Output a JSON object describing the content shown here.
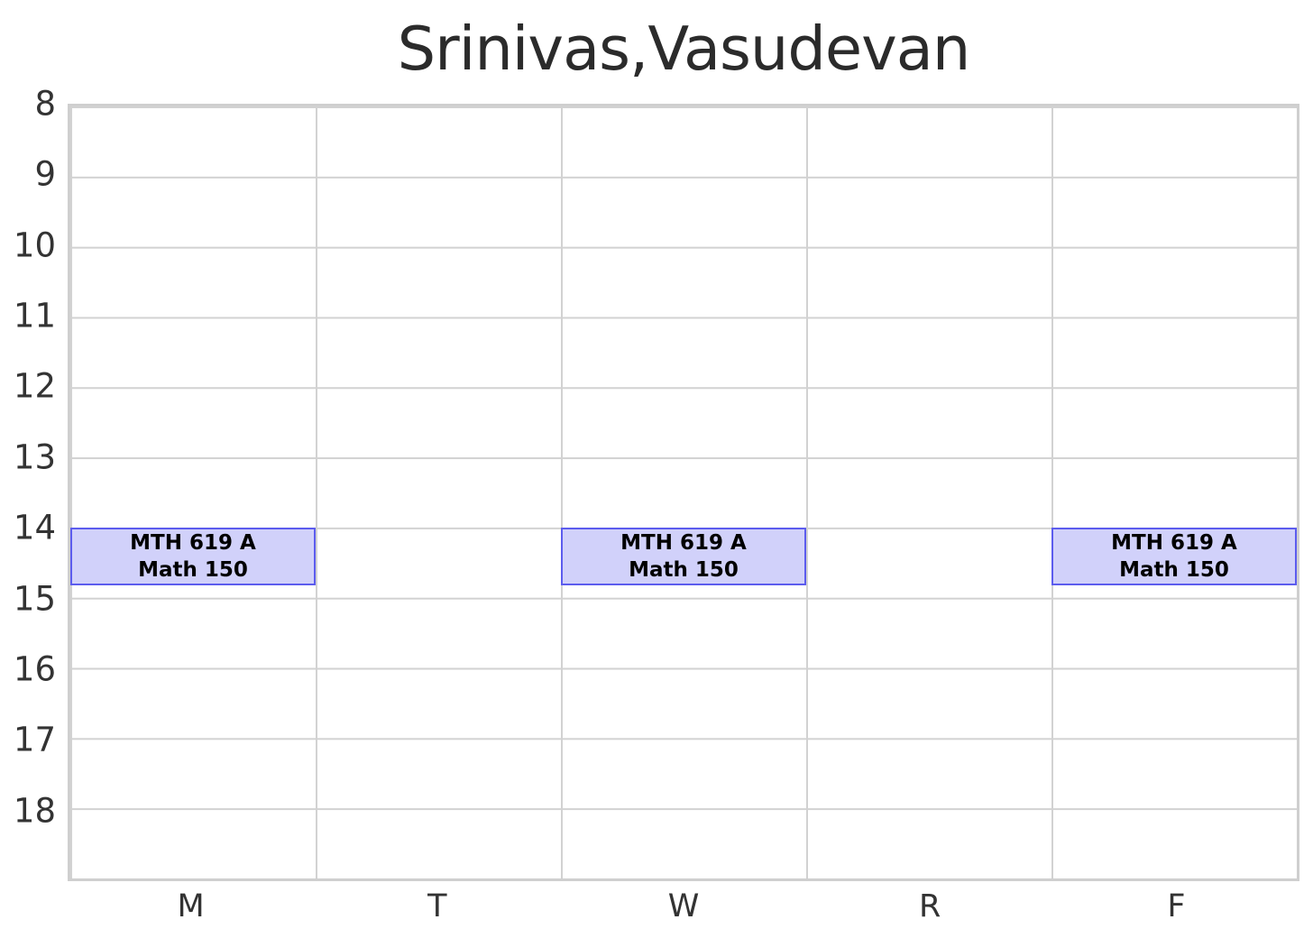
{
  "title": "Srinivas,Vasudevan",
  "colors": {
    "background": "#ffffff",
    "grid": "#d2d2d2",
    "spine": "#cfcfcf",
    "event_fill": "#d1d1fa",
    "event_border": "#5c5cee",
    "title_text": "#2b2b2b",
    "tick_text": "#333333",
    "event_text": "#000000"
  },
  "chart_data": {
    "type": "heatmap",
    "subtype": "weekly-schedule-grid",
    "title": "Srinivas,Vasudevan",
    "xlabel": "",
    "ylabel": "",
    "x_categories": [
      "M",
      "T",
      "W",
      "R",
      "F"
    ],
    "y_ticks": [
      8,
      9,
      10,
      11,
      12,
      13,
      14,
      15,
      16,
      17,
      18
    ],
    "y_range": [
      8,
      19
    ],
    "y_direction": "down",
    "grid": true,
    "legend": "none",
    "events": [
      {
        "day": "M",
        "day_index": 0,
        "start_hour": 14.0,
        "end_hour": 14.83,
        "label_line1": "MTH 619 A",
        "label_line2": "Math 150"
      },
      {
        "day": "W",
        "day_index": 2,
        "start_hour": 14.0,
        "end_hour": 14.83,
        "label_line1": "MTH 619 A",
        "label_line2": "Math 150"
      },
      {
        "day": "F",
        "day_index": 4,
        "start_hour": 14.0,
        "end_hour": 14.83,
        "label_line1": "MTH 619 A",
        "label_line2": "Math 150"
      }
    ]
  }
}
